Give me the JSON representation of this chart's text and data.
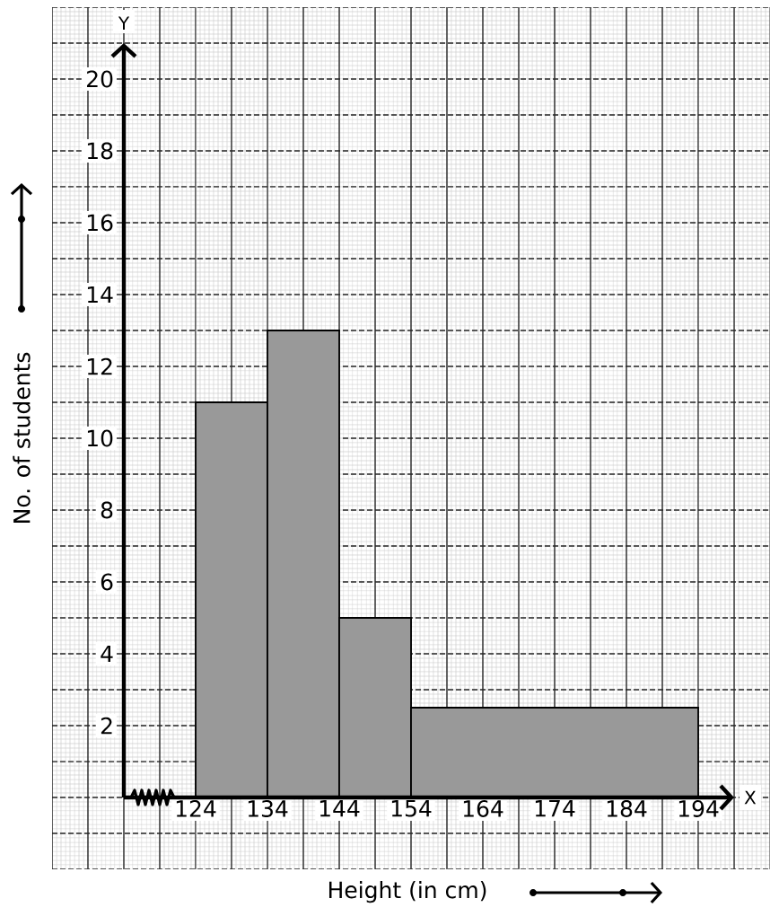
{
  "chart_data": {
    "type": "histogram",
    "xlabel": "Height (in cm)",
    "ylabel": "No. of students",
    "annotations": [
      "Y",
      "X"
    ],
    "bins": [
      124,
      134,
      144,
      154,
      194
    ],
    "values": [
      11,
      13,
      5,
      2.5
    ],
    "color": "#999999",
    "xlim": [
      104,
      204
    ],
    "ylim": [
      -2,
      22
    ],
    "xticks": [
      124,
      134,
      144,
      154,
      164,
      174,
      184,
      194
    ],
    "yticks": [
      2,
      4,
      6,
      8,
      10,
      12,
      14,
      16,
      18,
      20
    ],
    "grid": true
  }
}
